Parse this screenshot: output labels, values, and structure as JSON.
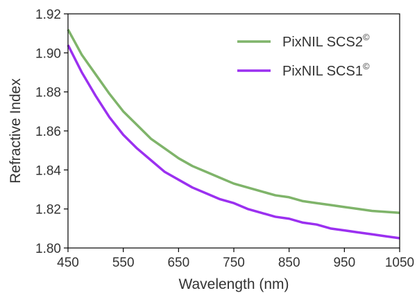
{
  "chart_data": {
    "type": "line",
    "xlabel": "Wavelength (nm)",
    "ylabel": "Refractive Index",
    "xlim": [
      450,
      1050
    ],
    "ylim": [
      1.8,
      1.92
    ],
    "x_ticks": [
      "450",
      "550",
      "650",
      "750",
      "850",
      "950",
      "1050"
    ],
    "y_ticks": [
      "1.80",
      "1.82",
      "1.84",
      "1.86",
      "1.88",
      "1.90",
      "1.92"
    ],
    "grid": false,
    "legend_position": "top-right",
    "series": [
      {
        "name": "PixNIL SCS2",
        "name_sup": "©",
        "color": "#7fb46a",
        "x": [
          450,
          475,
          500,
          525,
          550,
          575,
          600,
          625,
          650,
          675,
          700,
          725,
          750,
          775,
          800,
          825,
          850,
          875,
          900,
          925,
          950,
          975,
          1000,
          1025,
          1050
        ],
        "y": [
          1.912,
          1.899,
          1.889,
          1.879,
          1.87,
          1.863,
          1.856,
          1.851,
          1.846,
          1.842,
          1.839,
          1.836,
          1.833,
          1.831,
          1.829,
          1.827,
          1.826,
          1.824,
          1.823,
          1.822,
          1.821,
          1.82,
          1.819,
          1.8185,
          1.818
        ]
      },
      {
        "name": "PixNIL SCS1",
        "name_sup": "©",
        "color": "#9b30f0",
        "x": [
          450,
          475,
          500,
          525,
          550,
          575,
          600,
          625,
          650,
          675,
          700,
          725,
          750,
          775,
          800,
          825,
          850,
          875,
          900,
          925,
          950,
          975,
          1000,
          1025,
          1050
        ],
        "y": [
          1.904,
          1.89,
          1.878,
          1.867,
          1.858,
          1.851,
          1.845,
          1.839,
          1.835,
          1.831,
          1.828,
          1.825,
          1.823,
          1.82,
          1.818,
          1.816,
          1.815,
          1.813,
          1.812,
          1.81,
          1.809,
          1.808,
          1.807,
          1.806,
          1.805
        ]
      }
    ]
  }
}
